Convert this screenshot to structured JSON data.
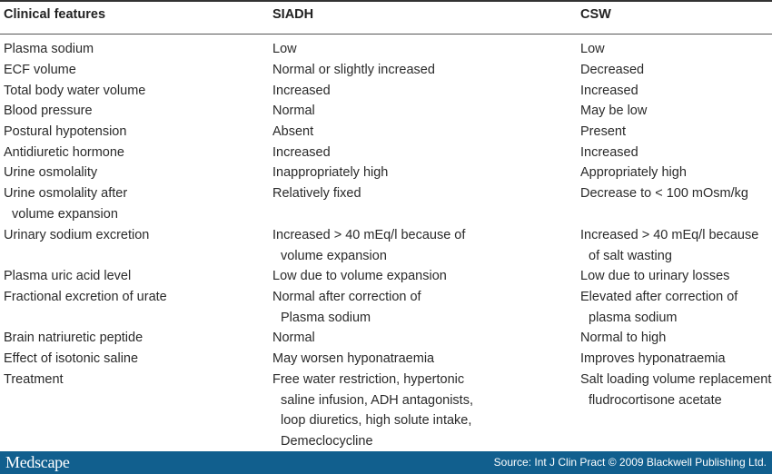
{
  "table": {
    "headers": [
      "Clinical features",
      "SIADH",
      "CSW"
    ],
    "rows": [
      [
        [
          "Plasma sodium"
        ],
        [
          "Low"
        ],
        [
          "Low"
        ]
      ],
      [
        [
          "ECF volume"
        ],
        [
          "Normal or slightly increased"
        ],
        [
          "Decreased"
        ]
      ],
      [
        [
          "Total body water volume"
        ],
        [
          "Increased"
        ],
        [
          "Increased"
        ]
      ],
      [
        [
          "Blood pressure"
        ],
        [
          "Normal"
        ],
        [
          "May be low"
        ]
      ],
      [
        [
          "Postural hypotension"
        ],
        [
          "Absent"
        ],
        [
          "Present"
        ]
      ],
      [
        [
          "Antidiuretic hormone"
        ],
        [
          "Increased"
        ],
        [
          "Increased"
        ]
      ],
      [
        [
          "Urine osmolality"
        ],
        [
          "Inappropriately high"
        ],
        [
          "Appropriately high"
        ]
      ],
      [
        [
          "Urine osmolality after",
          "volume expansion"
        ],
        [
          "Relatively fixed"
        ],
        [
          "Decrease to < 100 mOsm/kg"
        ]
      ],
      [
        [
          "Urinary sodium excretion"
        ],
        [
          "Increased > 40 mEq/l because of",
          "volume expansion"
        ],
        [
          "Increased > 40 mEq/l because",
          "of salt wasting"
        ]
      ],
      [
        [
          "Plasma uric acid level"
        ],
        [
          "Low due to volume expansion"
        ],
        [
          "Low due to urinary losses"
        ]
      ],
      [
        [
          "Fractional excretion of urate"
        ],
        [
          "Normal after correction of",
          "Plasma sodium"
        ],
        [
          "Elevated after correction of",
          "plasma sodium"
        ]
      ],
      [
        [
          "Brain natriuretic peptide"
        ],
        [
          "Normal"
        ],
        [
          "Normal to high"
        ]
      ],
      [
        [
          "Effect of isotonic saline"
        ],
        [
          "May worsen hyponatraemia"
        ],
        [
          "Improves hyponatraemia"
        ]
      ],
      [
        [
          "Treatment"
        ],
        [
          "Free water restriction, hypertonic",
          "saline infusion, ADH antagonists,",
          "loop diuretics, high solute intake,",
          "Demeclocycline"
        ],
        [
          "Salt loading volume replacement,",
          "fludrocortisone acetate"
        ]
      ]
    ]
  },
  "footer": {
    "logo": "Medscape",
    "source": "Source: Int J Clin Pract © 2009 Blackwell Publishing Ltd."
  },
  "colors": {
    "footer_bg": "#115f8e",
    "text": "#222222"
  }
}
